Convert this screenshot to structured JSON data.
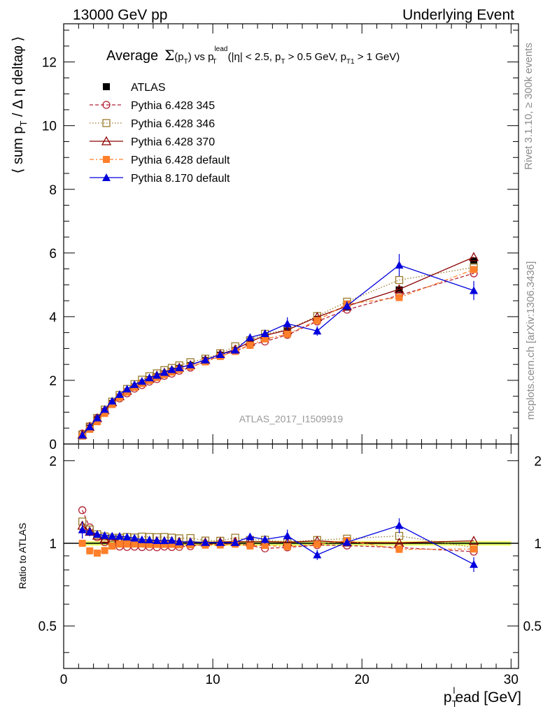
{
  "header": {
    "left": "13000 GeV pp",
    "right": "Underlying Event"
  },
  "side_text": {
    "rivet": "Rivet 3.1.10, ≥ 300k events",
    "mcplots": "mcplots.cern.ch [arXiv:1306.3436]"
  },
  "chart_data": [
    {
      "type": "scatter",
      "panel": "main",
      "title": "Average Σ(pT) vs pT^lead (|η| < 2.5, pT > 0.5 GeV, pT1 > 1 GeV)",
      "title_parts": {
        "a": "Average",
        "b": "Σ",
        "c": "(p",
        "c_sub": "T",
        "d": ")  vs  p",
        "d_sup": "lead",
        "d_sub": "T",
        "e": " (|η| < 2.5, p",
        "e_sub": "T",
        "f": " > 0.5 GeV, p",
        "f_sub": "T1",
        "g": " > 1 GeV)"
      },
      "ylabel": "⟨ sum p_T / Δη deltaφ ⟩",
      "ylabel_parts": {
        "a": "⟨ sum p",
        "sub": "T",
        "b": " / Δ η deltaφ ⟩"
      },
      "watermark": "ATLAS_2017_I1509919",
      "xlim": [
        0,
        30.5
      ],
      "ylim": [
        0,
        13.2
      ],
      "yticks": [
        0,
        2,
        4,
        6,
        8,
        10,
        12
      ],
      "x": [
        1.25,
        1.75,
        2.25,
        2.75,
        3.25,
        3.75,
        4.25,
        4.75,
        5.25,
        5.75,
        6.25,
        6.75,
        7.25,
        7.75,
        8.5,
        9.5,
        10.5,
        11.5,
        12.5,
        13.5,
        15.0,
        17.0,
        19.0,
        22.5,
        27.5
      ],
      "series": [
        {
          "name": "ATLAS",
          "color": "#000000",
          "marker": "square-filled",
          "dash": "none",
          "values": [
            0.25,
            0.49,
            0.76,
            1.02,
            1.27,
            1.47,
            1.64,
            1.79,
            1.91,
            2.02,
            2.11,
            2.2,
            2.28,
            2.37,
            2.46,
            2.62,
            2.79,
            2.93,
            3.17,
            3.36,
            3.55,
            3.91,
            4.3,
            4.84,
            5.75
          ]
        },
        {
          "name": "Pythia 6.428 345",
          "color": "#b22234",
          "marker": "circle-open",
          "dash": "5,3",
          "values": [
            0.33,
            0.56,
            0.8,
            1.03,
            1.26,
            1.43,
            1.59,
            1.74,
            1.85,
            1.96,
            2.04,
            2.14,
            2.21,
            2.3,
            2.4,
            2.6,
            2.77,
            2.92,
            3.11,
            3.22,
            3.43,
            3.85,
            4.22,
            4.67,
            5.36
          ]
        },
        {
          "name": "Pythia 6.428 346",
          "color": "#9b7b2c",
          "marker": "square-open",
          "dash": "1.5,2.5",
          "values": [
            0.3,
            0.55,
            0.82,
            1.08,
            1.33,
            1.54,
            1.73,
            1.88,
            2.02,
            2.13,
            2.22,
            2.32,
            2.39,
            2.47,
            2.57,
            2.68,
            2.85,
            3.07,
            3.26,
            3.46,
            3.59,
            4.02,
            4.47,
            5.15,
            5.55
          ]
        },
        {
          "name": "Pythia 6.428 370",
          "color": "#8b0000",
          "marker": "triangle-open",
          "dash": "none",
          "values": [
            0.29,
            0.54,
            0.81,
            1.06,
            1.31,
            1.5,
            1.67,
            1.82,
            1.94,
            2.05,
            2.15,
            2.24,
            2.32,
            2.4,
            2.48,
            2.64,
            2.82,
            2.97,
            3.21,
            3.41,
            3.58,
            3.99,
            4.33,
            4.86,
            5.87
          ]
        },
        {
          "name": "Pythia 6.428 default",
          "color": "#ff7f2a",
          "marker": "square-filled",
          "dash": "6,3,2,3",
          "values": [
            0.25,
            0.46,
            0.7,
            0.96,
            1.24,
            1.46,
            1.63,
            1.78,
            1.9,
            2.0,
            2.09,
            2.18,
            2.26,
            2.34,
            2.43,
            2.58,
            2.75,
            2.91,
            3.1,
            3.3,
            3.45,
            3.88,
            4.4,
            4.6,
            5.48
          ]
        },
        {
          "name": "Pythia 8.170 default",
          "color": "#0000dd",
          "marker": "triangle-filled",
          "dash": "none",
          "values": [
            0.28,
            0.54,
            0.82,
            1.09,
            1.35,
            1.56,
            1.73,
            1.87,
            1.97,
            2.08,
            2.16,
            2.25,
            2.34,
            2.4,
            2.49,
            2.64,
            2.81,
            2.95,
            3.35,
            3.47,
            3.78,
            3.55,
            4.34,
            5.62,
            4.82
          ],
          "errors": [
            0.02,
            0.02,
            0.02,
            0.02,
            0.02,
            0.03,
            0.03,
            0.03,
            0.03,
            0.03,
            0.03,
            0.04,
            0.04,
            0.04,
            0.04,
            0.05,
            0.06,
            0.07,
            0.1,
            0.12,
            0.2,
            0.15,
            0.15,
            0.35,
            0.3
          ]
        }
      ]
    },
    {
      "type": "scatter",
      "panel": "ratio",
      "ylabel": "Ratio to ATLAS",
      "xlabel": "p_T^lead [GeV]",
      "xlabel_parts": {
        "a": "p",
        "sub": "T",
        "sup": "l",
        "b": "ead [GeV]"
      },
      "xlim": [
        0,
        30.5
      ],
      "ylim": [
        0.35,
        2.3
      ],
      "yticks": [
        0.5,
        1,
        2
      ],
      "xticks": [
        0,
        10,
        20,
        30
      ],
      "band": 0.02
    }
  ]
}
